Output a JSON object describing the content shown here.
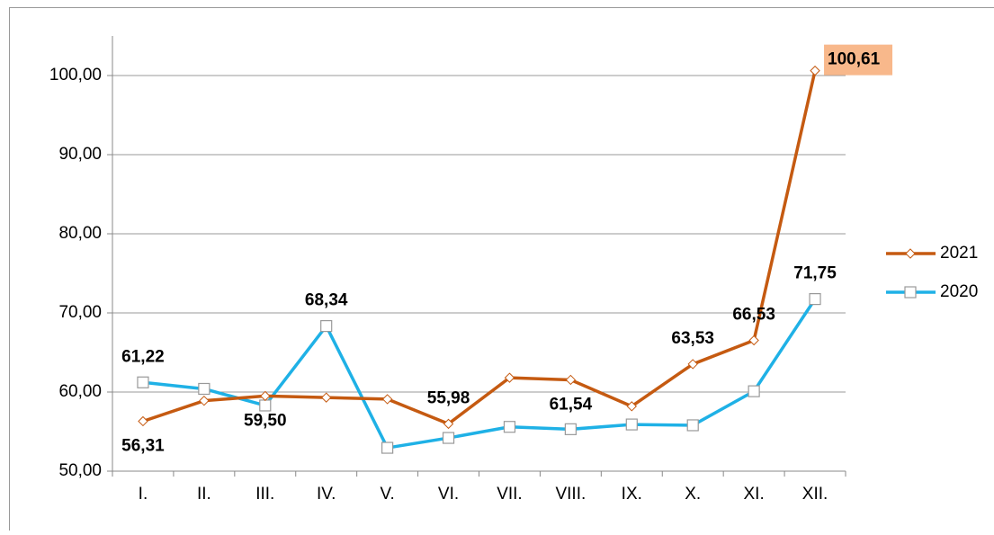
{
  "chart_data": {
    "type": "line",
    "categories": [
      "I.",
      "II.",
      "III.",
      "IV.",
      "V.",
      "VI.",
      "VII.",
      "VIII.",
      "IX.",
      "X.",
      "XI.",
      "XII."
    ],
    "series": [
      {
        "name": "2021",
        "color": "#c55a11",
        "marker": "diamond",
        "values": [
          56.31,
          58.9,
          59.5,
          59.3,
          59.1,
          55.98,
          61.8,
          61.54,
          58.2,
          63.53,
          66.53,
          100.61
        ],
        "value_labels": [
          "56,31",
          null,
          "59,50",
          null,
          null,
          "55,98",
          null,
          "61,54",
          null,
          "63,53",
          "66,53",
          "100,61"
        ],
        "label_background": [
          null,
          null,
          null,
          null,
          null,
          null,
          null,
          null,
          null,
          null,
          null,
          "#f8b88b"
        ]
      },
      {
        "name": "2020",
        "color": "#1fb1e6",
        "marker": "square",
        "values": [
          61.22,
          60.4,
          58.3,
          68.34,
          52.95,
          54.2,
          55.6,
          55.3,
          55.9,
          55.8,
          60.1,
          71.75
        ],
        "value_labels": [
          "61,22",
          null,
          null,
          "68,34",
          null,
          null,
          null,
          null,
          null,
          null,
          null,
          "71,75"
        ]
      }
    ],
    "ylim": [
      50,
      105
    ],
    "yticks": [
      {
        "value": 50,
        "label": "50,00"
      },
      {
        "value": 60,
        "label": "60,00"
      },
      {
        "value": 70,
        "label": "70,00"
      },
      {
        "value": 80,
        "label": "80,00"
      },
      {
        "value": 90,
        "label": "90,00"
      },
      {
        "value": 100,
        "label": "100,00"
      }
    ],
    "grid": true,
    "legend": "right"
  }
}
